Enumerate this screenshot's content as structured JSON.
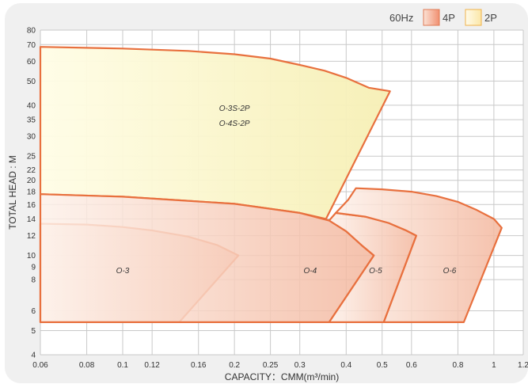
{
  "chart_data": {
    "type": "area",
    "xlabel": "CAPACITY：CMM(m³/min)",
    "ylabel": "TOTAL HEAD : M",
    "x_scale": "log",
    "y_scale": "log",
    "xlim": [
      0.06,
      1.2
    ],
    "ylim": [
      4,
      80
    ],
    "x_ticks": [
      0.06,
      0.08,
      0.1,
      0.12,
      0.16,
      0.2,
      0.25,
      0.3,
      0.4,
      0.5,
      0.6,
      0.8,
      1,
      1.2
    ],
    "x_tick_labels": [
      "0.06",
      "0.08",
      "0.1",
      "0.12",
      "0.16",
      "0.2",
      "0.25",
      "0.3",
      "0.4",
      "0.5",
      "0.6",
      "0.8",
      "1",
      "1.2"
    ],
    "y_ticks": [
      4,
      5,
      6,
      8,
      9,
      10,
      12,
      14,
      16,
      18,
      20,
      22,
      25,
      30,
      35,
      40,
      50,
      60,
      70,
      80
    ],
    "y_tick_labels": [
      "4",
      "5",
      "6",
      "8",
      "9",
      "10",
      "12",
      "14",
      "16",
      "18",
      "20",
      "22",
      "25",
      "30",
      "35",
      "40",
      "50",
      "60",
      "70",
      "80"
    ],
    "grid": true,
    "legend": {
      "placement": "top-right",
      "frequency": "60Hz",
      "entries": [
        {
          "name": "4P",
          "color": "#f4a582"
        },
        {
          "name": "2P",
          "color": "#fbedb0"
        }
      ]
    },
    "series": [
      {
        "name": "O-3S-2P / O-4S-2P",
        "pole": "2P",
        "labels": [
          "O-3S-2P",
          "O-4S-2P"
        ],
        "label_at": [
          [
            0.2,
            38
          ],
          [
            0.2,
            33
          ]
        ],
        "polygon": [
          [
            0.06,
            68.5
          ],
          [
            0.1,
            67.5
          ],
          [
            0.15,
            66
          ],
          [
            0.2,
            64
          ],
          [
            0.25,
            61.5
          ],
          [
            0.3,
            58
          ],
          [
            0.35,
            55
          ],
          [
            0.4,
            51.5
          ],
          [
            0.46,
            47
          ],
          [
            0.525,
            45.5
          ],
          [
            0.353,
            14
          ],
          [
            0.3,
            14.8
          ],
          [
            0.2,
            16.1
          ],
          [
            0.1,
            17.2
          ],
          [
            0.06,
            17.6
          ]
        ]
      },
      {
        "name": "O-3",
        "pole": "4P",
        "labels": [
          "O-3"
        ],
        "label_at": [
          [
            0.1,
            8.5
          ]
        ],
        "polygon": [
          [
            0.06,
            13.4
          ],
          [
            0.08,
            13.3
          ],
          [
            0.1,
            13
          ],
          [
            0.12,
            12.6
          ],
          [
            0.15,
            11.9
          ],
          [
            0.18,
            11
          ],
          [
            0.205,
            10
          ],
          [
            0.142,
            5.4
          ],
          [
            0.06,
            5.4
          ]
        ]
      },
      {
        "name": "O-4",
        "pole": "4P",
        "labels": [
          "O-4"
        ],
        "label_at": [
          [
            0.32,
            8.5
          ]
        ],
        "polygon": [
          [
            0.06,
            17.6
          ],
          [
            0.1,
            17.2
          ],
          [
            0.2,
            16.1
          ],
          [
            0.3,
            14.8
          ],
          [
            0.36,
            13.8
          ],
          [
            0.4,
            12.5
          ],
          [
            0.44,
            11
          ],
          [
            0.475,
            10
          ],
          [
            0.36,
            5.4
          ],
          [
            0.06,
            5.4
          ]
        ]
      },
      {
        "name": "O-5",
        "pole": "4P",
        "labels": [
          "O-5"
        ],
        "label_at": [
          [
            0.48,
            8.5
          ]
        ],
        "polygon": [
          [
            0.375,
            14.8
          ],
          [
            0.45,
            14.3
          ],
          [
            0.52,
            13.5
          ],
          [
            0.58,
            12.6
          ],
          [
            0.618,
            12
          ],
          [
            0.505,
            5.4
          ],
          [
            0.36,
            5.4
          ],
          [
            0.475,
            10
          ],
          [
            0.44,
            11
          ],
          [
            0.4,
            12.5
          ],
          [
            0.36,
            13.8
          ]
        ]
      },
      {
        "name": "O-6",
        "pole": "4P",
        "labels": [
          "O-6"
        ],
        "label_at": [
          [
            0.76,
            8.5
          ]
        ],
        "polygon": [
          [
            0.425,
            18.6
          ],
          [
            0.5,
            18.4
          ],
          [
            0.6,
            18
          ],
          [
            0.7,
            17.3
          ],
          [
            0.8,
            16.4
          ],
          [
            0.9,
            15.2
          ],
          [
            1.0,
            14
          ],
          [
            1.05,
            12.9
          ],
          [
            0.83,
            5.4
          ],
          [
            0.505,
            5.4
          ],
          [
            0.618,
            12
          ],
          [
            0.58,
            12.6
          ],
          [
            0.52,
            13.5
          ],
          [
            0.45,
            14.3
          ],
          [
            0.375,
            14.8
          ],
          [
            0.405,
            16.7
          ]
        ]
      }
    ]
  }
}
